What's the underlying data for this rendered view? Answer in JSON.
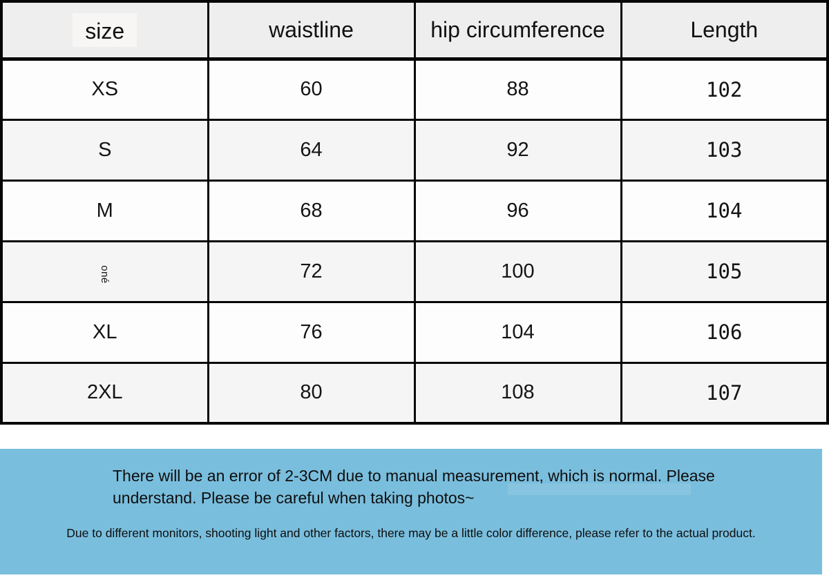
{
  "chart_data": {
    "type": "table",
    "columns": [
      "size",
      "waistline",
      "hip circumference",
      "Length"
    ],
    "rows": [
      [
        "XS",
        "60",
        "88",
        "102"
      ],
      [
        "S",
        "64",
        "92",
        "103"
      ],
      [
        "M",
        "68",
        "96",
        "104"
      ],
      [
        "oné",
        "72",
        "100",
        "105"
      ],
      [
        "XL",
        "76",
        "104",
        "106"
      ],
      [
        "2XL",
        "80",
        "108",
        "107"
      ]
    ],
    "layout_hints": {
      "header_background": "#efeeee",
      "alt_row_background": "#f6f5f5",
      "border_color": "#060606",
      "row4_size_label_rotated_90deg": true
    }
  },
  "notes": {
    "measurement": "There will be an error of 2-3CM due to manual measurement, which is normal. Please understand. Please be careful when taking photos~",
    "color_difference": "Due to different monitors, shooting light and other factors, there may be a little color difference, please refer to the actual product.",
    "background_color": "#7abedd"
  }
}
